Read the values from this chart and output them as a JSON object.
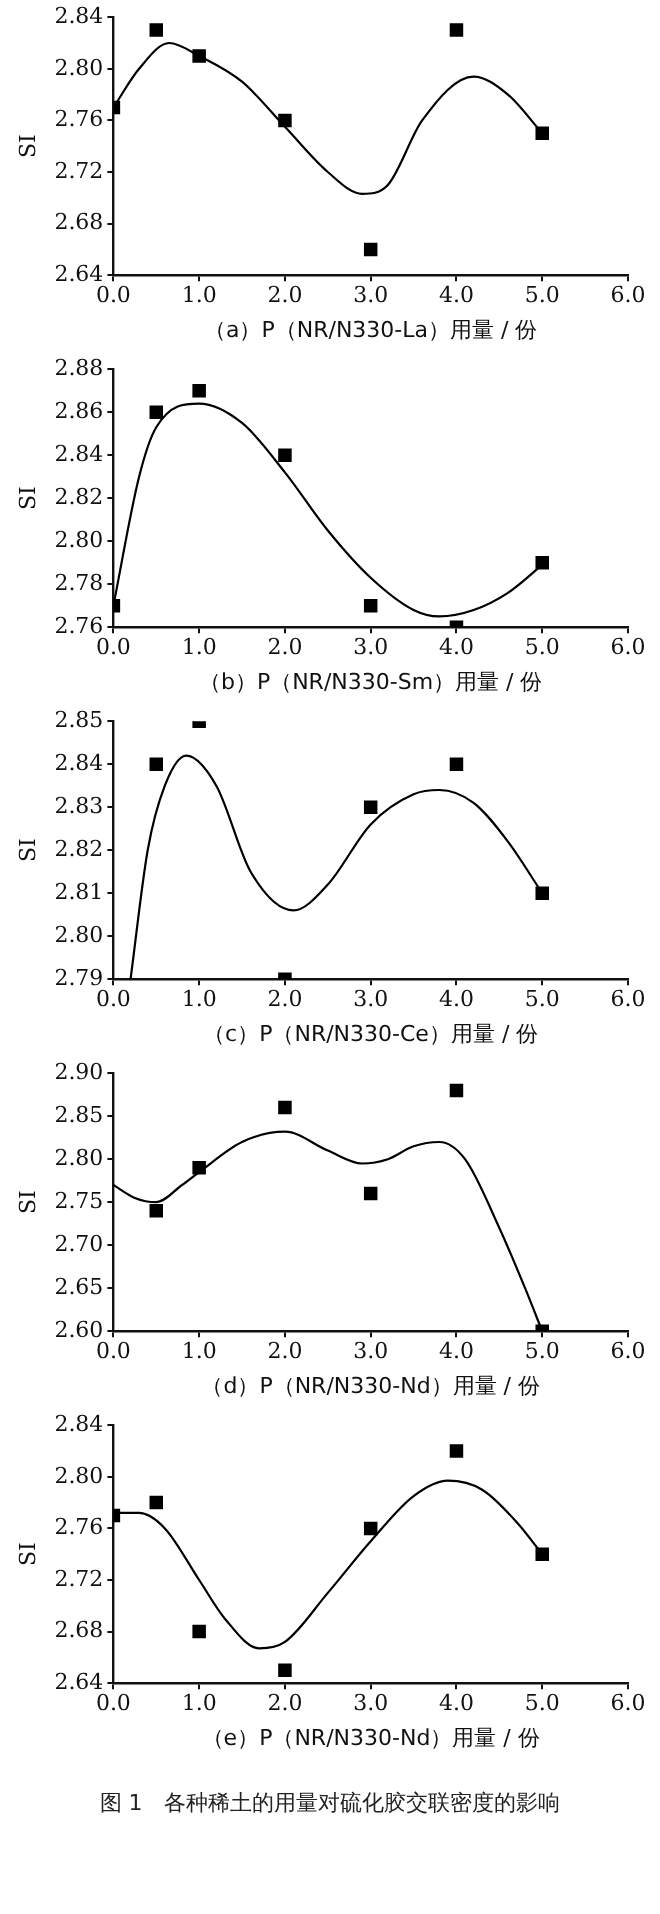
{
  "chart_data": [
    {
      "type": "scatter",
      "xlabel": "（a）P（NR/N330-La）用量 / 份",
      "ylabel": "SI",
      "marker": "square",
      "xlim": [
        0,
        6
      ],
      "xticks": [
        {
          "value": 0,
          "label": "0.0"
        },
        {
          "value": 1,
          "label": "1.0"
        },
        {
          "value": 2,
          "label": "2.0"
        },
        {
          "value": 3,
          "label": "3.0"
        },
        {
          "value": 4,
          "label": "4.0"
        },
        {
          "value": 5,
          "label": "5.0"
        },
        {
          "value": 6,
          "label": "6.0"
        }
      ],
      "ylim": [
        2.64,
        2.84
      ],
      "yticks": [
        2.64,
        2.68,
        2.72,
        2.76,
        {
          "value": 2.8,
          "label": "2.80"
        },
        2.84
      ],
      "series": [
        {
          "color": "#000000",
          "x": [
            0,
            0.5,
            1,
            2,
            3,
            4,
            5
          ],
          "values": [
            2.77,
            2.83,
            2.81,
            2.76,
            2.66,
            2.83,
            2.75
          ]
        },
        {
          "type": "line",
          "color": "#000000",
          "marker": "none",
          "x": [
            0,
            0.3,
            0.65,
            1,
            1.5,
            2,
            2.5,
            2.9,
            3.2,
            3.6,
            4.2,
            4.6,
            5
          ],
          "values": [
            2.77,
            2.8,
            2.82,
            2.81,
            2.79,
            2.755,
            2.72,
            2.703,
            2.71,
            2.76,
            2.794,
            2.78,
            2.75
          ]
        }
      ]
    },
    {
      "type": "scatter",
      "xlabel": "（b）P（NR/N330-Sm）用量 / 份",
      "ylabel": "SI",
      "marker": "square",
      "xlim": [
        0,
        6
      ],
      "xticks": [
        {
          "value": 0,
          "label": "0.0"
        },
        {
          "value": 1,
          "label": "1.0"
        },
        {
          "value": 2,
          "label": "2.0"
        },
        {
          "value": 3,
          "label": "3.0"
        },
        {
          "value": 4,
          "label": "4.0"
        },
        {
          "value": 5,
          "label": "5.0"
        },
        {
          "value": 6,
          "label": "6.0"
        }
      ],
      "ylim": [
        2.76,
        2.88
      ],
      "yticks": [
        2.76,
        2.78,
        {
          "value": 2.8,
          "label": "2.80"
        },
        2.82,
        2.84,
        2.86,
        2.88
      ],
      "series": [
        {
          "color": "#000000",
          "x": [
            0,
            0.5,
            1,
            2,
            3,
            4,
            5
          ],
          "values": [
            2.77,
            2.86,
            2.87,
            2.84,
            2.77,
            2.76,
            2.79
          ]
        },
        {
          "type": "line",
          "color": "#000000",
          "marker": "none",
          "x": [
            0,
            0.3,
            0.5,
            1,
            1.5,
            2,
            2.5,
            3,
            3.5,
            3.8,
            4.2,
            4.6,
            5
          ],
          "values": [
            2.77,
            2.83,
            2.853,
            2.864,
            2.855,
            2.832,
            2.805,
            2.783,
            2.768,
            2.765,
            2.768,
            2.776,
            2.789
          ]
        }
      ]
    },
    {
      "type": "scatter",
      "xlabel": "（c）P（NR/N330-Ce）用量 / 份",
      "ylabel": "SI",
      "marker": "square",
      "xlim": [
        0,
        6
      ],
      "xticks": [
        {
          "value": 0,
          "label": "0.0"
        },
        {
          "value": 1,
          "label": "1.0"
        },
        {
          "value": 2,
          "label": "2.0"
        },
        {
          "value": 3,
          "label": "3.0"
        },
        {
          "value": 4,
          "label": "4.0"
        },
        {
          "value": 5,
          "label": "5.0"
        },
        {
          "value": 6,
          "label": "6.0"
        }
      ],
      "ylim": [
        2.79,
        2.85
      ],
      "yticks": [
        2.79,
        {
          "value": 2.8,
          "label": "2.80"
        },
        2.81,
        2.82,
        2.83,
        2.84,
        2.85
      ],
      "series": [
        {
          "color": "#000000",
          "x": [
            0.5,
            1,
            2,
            3,
            4,
            5
          ],
          "values": [
            2.84,
            2.85,
            2.79,
            2.83,
            2.84,
            2.81
          ]
        },
        {
          "type": "line",
          "color": "#000000",
          "marker": "none",
          "x": [
            0.2,
            0.4,
            0.6,
            0.85,
            1.2,
            1.6,
            2.1,
            2.5,
            3,
            3.5,
            3.8,
            4.2,
            4.6,
            5
          ],
          "values": [
            2.79,
            2.82,
            2.835,
            2.842,
            2.835,
            2.815,
            2.806,
            2.812,
            2.826,
            2.833,
            2.834,
            2.831,
            2.822,
            2.81
          ]
        }
      ]
    },
    {
      "type": "scatter",
      "xlabel": "（d）P（NR/N330-Nd）用量 / 份",
      "ylabel": "SI",
      "marker": "square",
      "xlim": [
        0,
        6
      ],
      "xticks": [
        {
          "value": 0,
          "label": "0.0"
        },
        {
          "value": 1,
          "label": "1.0"
        },
        {
          "value": 2,
          "label": "2.0"
        },
        {
          "value": 3,
          "label": "3.0"
        },
        {
          "value": 4,
          "label": "4.0"
        },
        {
          "value": 5,
          "label": "5.0"
        },
        {
          "value": 6,
          "label": "6.0"
        }
      ],
      "ylim": [
        2.6,
        2.9
      ],
      "yticks": [
        {
          "value": 2.6,
          "label": "2.60"
        },
        2.65,
        {
          "value": 2.7,
          "label": "2.70"
        },
        2.75,
        {
          "value": 2.8,
          "label": "2.80"
        },
        2.85,
        {
          "value": 2.9,
          "label": "2.90"
        }
      ],
      "series": [
        {
          "color": "#000000",
          "x": [
            0.5,
            1,
            2,
            3,
            4,
            5
          ],
          "values": [
            2.74,
            2.79,
            2.86,
            2.76,
            2.88,
            2.6
          ]
        },
        {
          "type": "line",
          "color": "#000000",
          "marker": "none",
          "x": [
            0,
            0.25,
            0.5,
            0.8,
            1,
            1.5,
            2,
            2.5,
            2.9,
            3.2,
            3.5,
            3.8,
            4.1,
            4.5,
            4.8,
            5
          ],
          "values": [
            2.77,
            2.755,
            2.75,
            2.77,
            2.785,
            2.82,
            2.832,
            2.81,
            2.795,
            2.8,
            2.815,
            2.82,
            2.8,
            2.72,
            2.65,
            2.6
          ]
        }
      ]
    },
    {
      "type": "scatter",
      "xlabel": "（e）P（NR/N330-Nd）用量 / 份",
      "ylabel": "SI",
      "marker": "square",
      "xlim": [
        0,
        6
      ],
      "xticks": [
        {
          "value": 0,
          "label": "0.0"
        },
        {
          "value": 1,
          "label": "1.0"
        },
        {
          "value": 2,
          "label": "2.0"
        },
        {
          "value": 3,
          "label": "3.0"
        },
        {
          "value": 4,
          "label": "4.0"
        },
        {
          "value": 5,
          "label": "5.0"
        },
        {
          "value": 6,
          "label": "6.0"
        }
      ],
      "ylim": [
        2.64,
        2.84
      ],
      "yticks": [
        2.64,
        2.68,
        2.72,
        2.76,
        {
          "value": 2.8,
          "label": "2.80"
        },
        2.84
      ],
      "annotations": [
        "图 1　各种稀土的用量对硫化胶交联密度的影响"
      ],
      "series": [
        {
          "color": "#000000",
          "x": [
            0,
            0.5,
            1,
            2,
            3,
            4,
            5
          ],
          "values": [
            2.77,
            2.78,
            2.68,
            2.65,
            2.76,
            2.82,
            2.74
          ]
        },
        {
          "type": "line",
          "color": "#000000",
          "marker": "none",
          "x": [
            0,
            0.3,
            0.6,
            1,
            1.3,
            1.7,
            2,
            2.5,
            3,
            3.5,
            3.9,
            4.3,
            4.7,
            5
          ],
          "values": [
            2.772,
            2.772,
            2.76,
            2.72,
            2.69,
            2.667,
            2.672,
            2.71,
            2.75,
            2.785,
            2.797,
            2.79,
            2.765,
            2.74
          ]
        }
      ]
    }
  ]
}
